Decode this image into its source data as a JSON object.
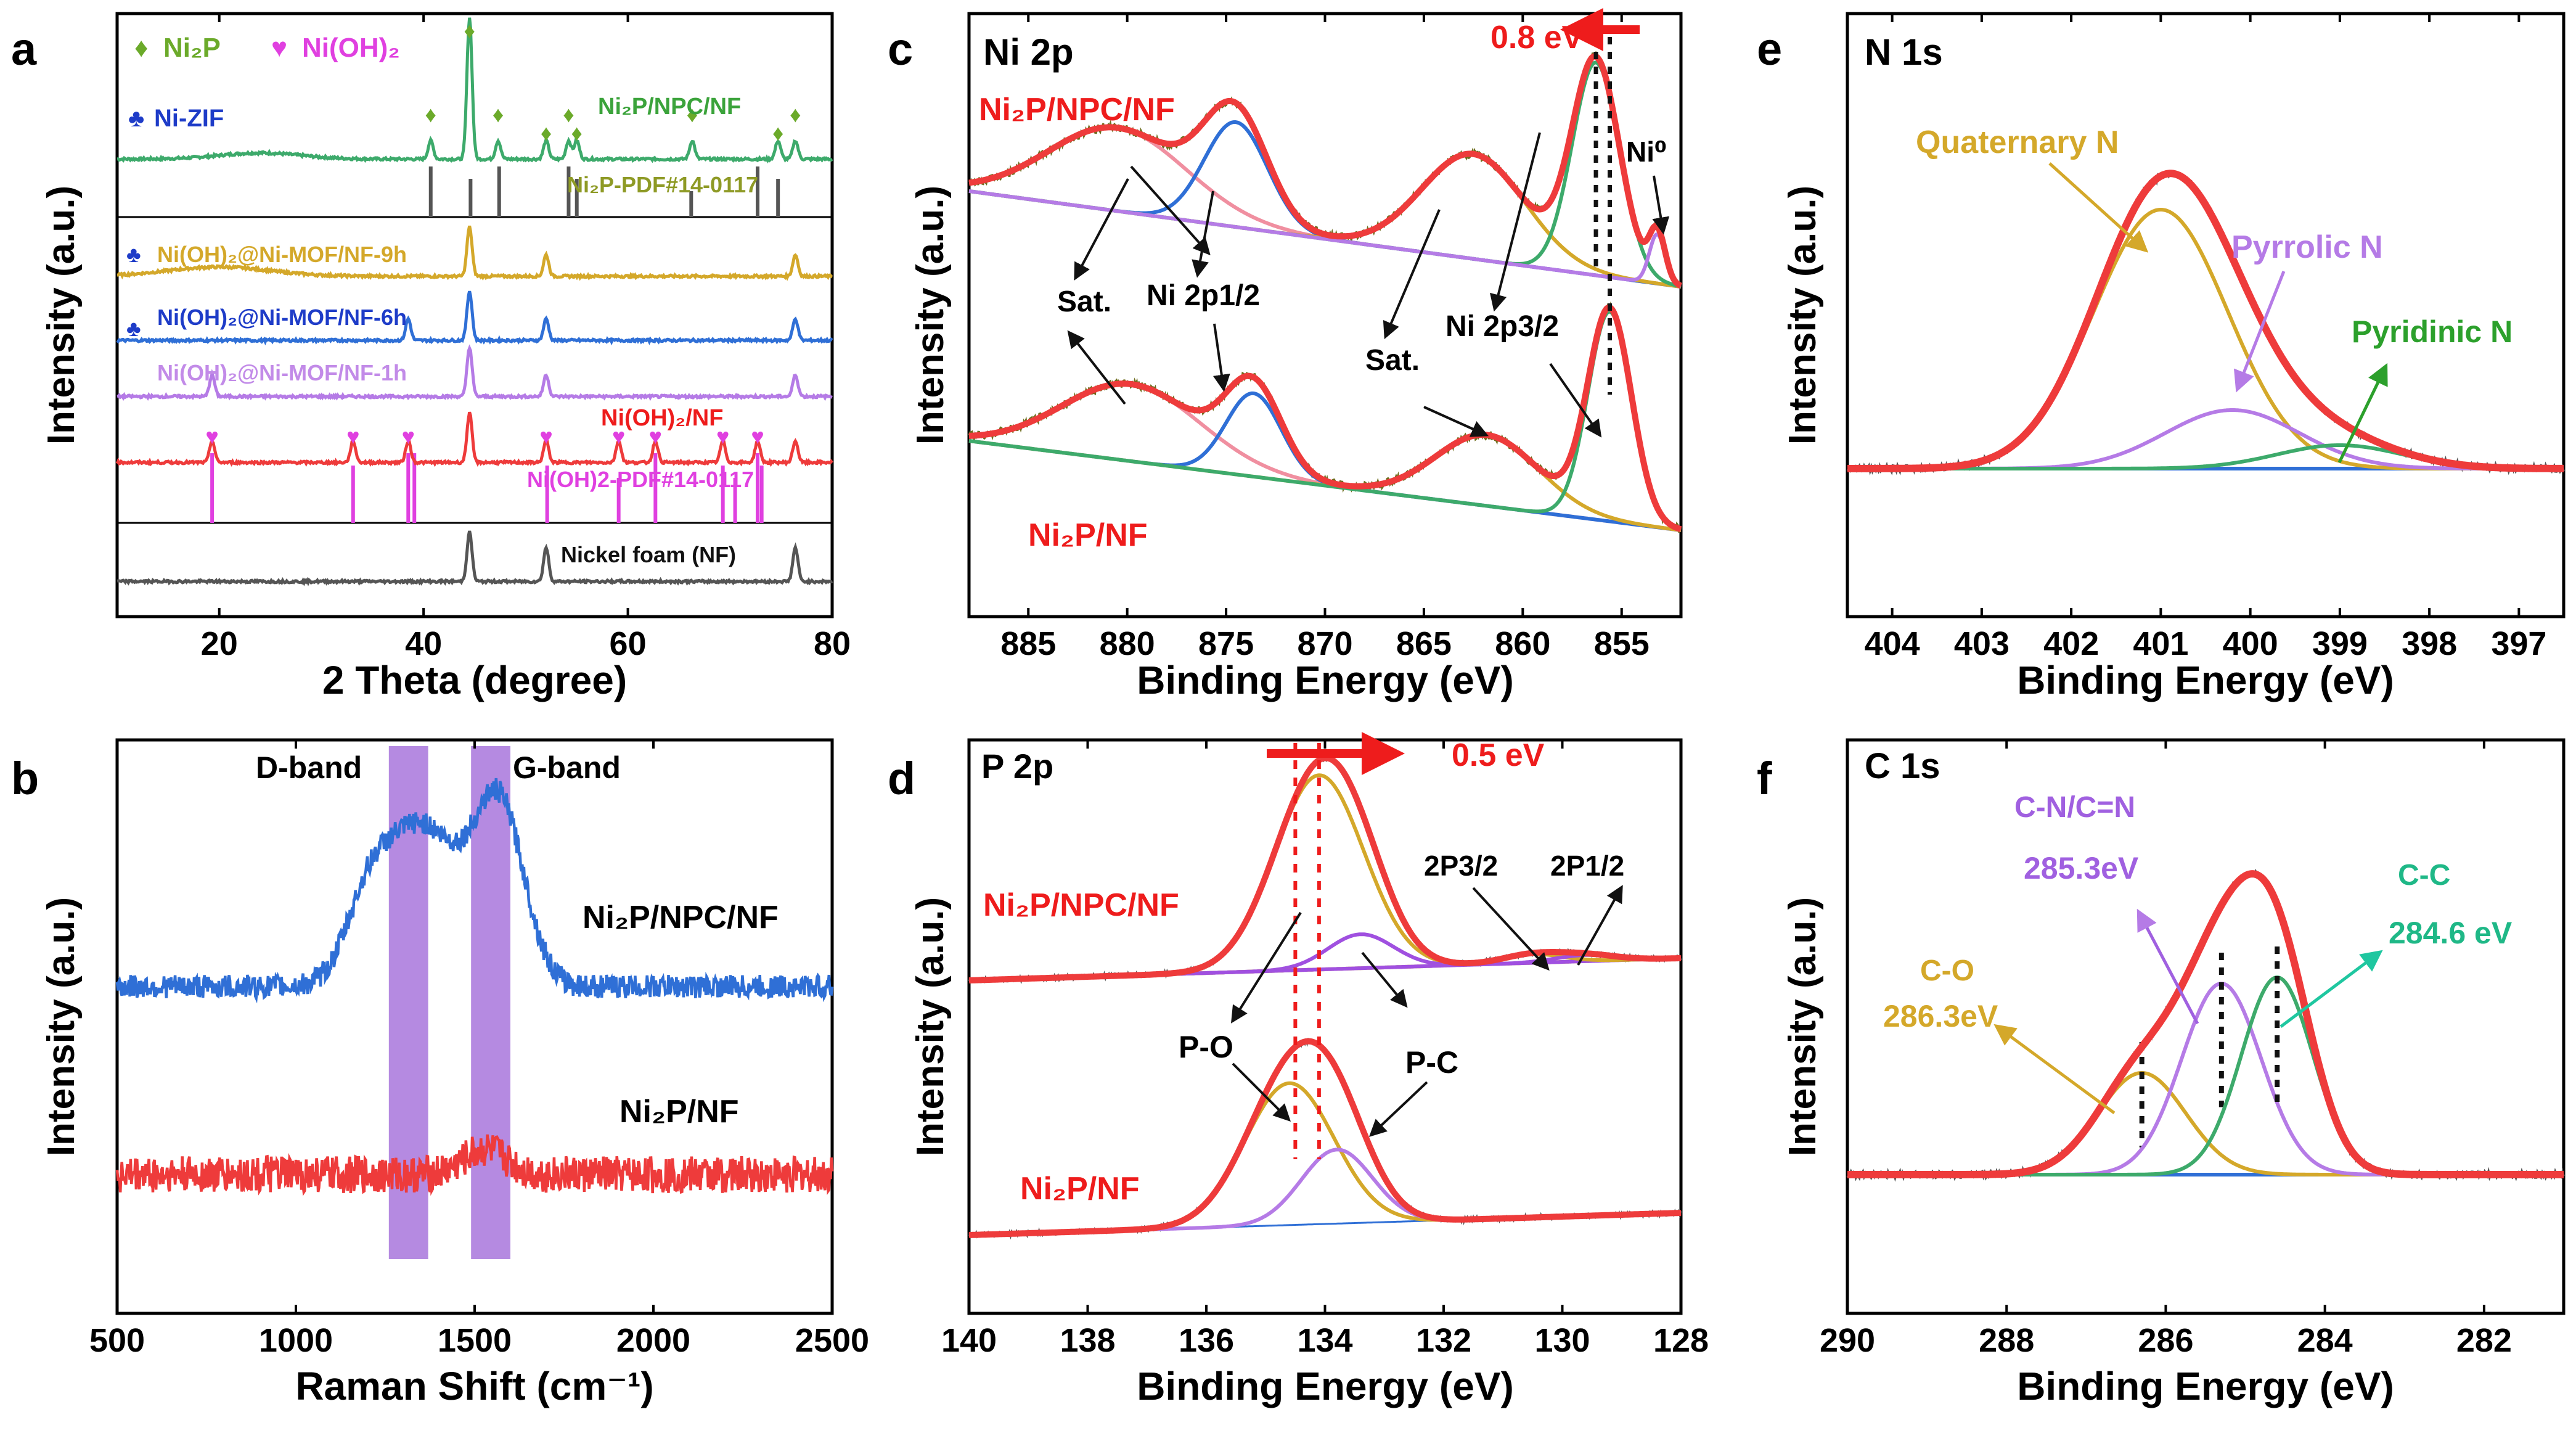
{
  "colors": {
    "red": "#EE3B3B",
    "blue": "#2F6FD6",
    "gold": "#D4A82A",
    "green": "#3DAA6B",
    "purple": "#B57BE6",
    "pink": "#F08FA0",
    "olive": "#8A8A2A",
    "gray": "#555555",
    "magenta": "#E040E0",
    "darkgreen": "#3BA33B",
    "band": "#9E6BD6"
  },
  "chart_data": [
    {
      "id": "a",
      "type": "line",
      "panel_label": "a",
      "xlabel": "2 Theta (degree)",
      "ylabel": "Intensity (a.u.)",
      "xlim": [
        10,
        80
      ],
      "xticks": [
        "20",
        "40",
        "60",
        "80"
      ],
      "legend": [
        {
          "symbol": "♦",
          "name": "Ni₂P",
          "color": "#6BAA2A"
        },
        {
          "symbol": "♥",
          "name": "Ni(OH)₂",
          "color": "#E040E0"
        },
        {
          "symbol": "♣",
          "name": "Ni-ZIF",
          "color": "#1E3CC8"
        }
      ],
      "series": [
        {
          "name": "Ni₂P/NPC/NF",
          "color": "#3DAA6B",
          "peaks": [
            40.7,
            44.5,
            47.3,
            52.0,
            54.2,
            55.0,
            66.3,
            74.7,
            76.4
          ]
        },
        {
          "name": "Ni(OH)₂@Ni-MOF/NF-9h",
          "color": "#D4A82A",
          "peaks": [
            44.5,
            52.0,
            76.4
          ]
        },
        {
          "name": "Ni(OH)₂@Ni-MOF/NF-6h",
          "color": "#2F6FD6",
          "peaks": [
            38.5,
            44.5,
            52.0,
            76.4
          ]
        },
        {
          "name": "Ni(OH)₂@Ni-MOF/NF-1h",
          "color": "#B57BE6",
          "peaks": [
            19.3,
            44.5,
            52.0,
            76.4
          ]
        },
        {
          "name": "Ni(OH)₂/NF",
          "color": "#EE3B3B",
          "peaks": [
            19.3,
            33.1,
            38.5,
            44.5,
            52.0,
            59.1,
            62.7,
            69.3,
            72.7,
            76.4
          ]
        },
        {
          "name": "Nickel foam (NF)",
          "color": "#555555",
          "peaks": [
            44.5,
            52.0,
            76.4
          ]
        }
      ],
      "references": [
        {
          "name": "Ni₂P-PDF#14-0117",
          "color": "#555555",
          "lines": [
            40.7,
            44.6,
            47.4,
            54.2,
            55.0,
            66.2,
            72.7,
            74.7
          ]
        },
        {
          "name": "Ni(OH)2-PDF#14-0117",
          "color": "#E040E0",
          "lines": [
            19.3,
            33.1,
            38.5,
            39.1,
            52.1,
            59.1,
            62.7,
            69.3,
            70.5,
            72.7,
            73.1
          ]
        }
      ]
    },
    {
      "id": "b",
      "type": "line",
      "panel_label": "b",
      "xlabel": "Raman Shift (cm⁻¹)",
      "ylabel": "Intensity (a.u.)",
      "xlim": [
        500,
        2500
      ],
      "xticks": [
        "500",
        "1000",
        "1500",
        "2000",
        "2500"
      ],
      "bands": [
        {
          "name": "D-band",
          "range": [
            1260,
            1370
          ]
        },
        {
          "name": "G-band",
          "range": [
            1490,
            1600
          ]
        }
      ],
      "series": [
        {
          "name": "Ni₂P/NPC/NF",
          "color": "#2F6FD6",
          "peaks": [
            {
              "x": 1350,
              "h": 1.0
            },
            {
              "x": 1580,
              "h": 1.0
            }
          ]
        },
        {
          "name": "Ni₂P/NF",
          "color": "#EE3B3B",
          "peaks": [
            {
              "x": 1530,
              "h": 0.3
            }
          ]
        }
      ]
    },
    {
      "id": "c",
      "type": "line",
      "panel_label": "c",
      "title": "Ni 2p",
      "xlabel": "Binding Energy (eV)",
      "ylabel": "Intensity (a.u.)",
      "xlim": [
        888,
        852
      ],
      "xticks": [
        "885",
        "880",
        "875",
        "870",
        "865",
        "860",
        "855"
      ],
      "shift_label": "0.8 eV",
      "series": [
        {
          "name": "Ni₂P/NPC/NF",
          "peaks": [
            {
              "x": 880.5,
              "label": "Sat.",
              "color": "#F08FA0"
            },
            {
              "x": 874.5,
              "label": "Ni 2p1/2",
              "color": "#2F6FD6"
            },
            {
              "x": 862.5,
              "label": "Sat.",
              "color": "#D4A82A"
            },
            {
              "x": 856.3,
              "label": "Ni 2p3/2",
              "color": "#3DAA6B"
            },
            {
              "x": 853.2,
              "label": "Ni⁰",
              "color": "#B57BE6"
            }
          ]
        },
        {
          "name": "Ni₂P/NF",
          "peaks": [
            {
              "x": 879.8,
              "label": "Sat.",
              "color": "#F08FA0"
            },
            {
              "x": 873.6,
              "label": "Ni 2p1/2",
              "color": "#2F6FD6"
            },
            {
              "x": 861.8,
              "label": "Sat.",
              "color": "#D4A82A"
            },
            {
              "x": 855.6,
              "label": "Ni 2p3/2",
              "color": "#3DAA6B"
            }
          ]
        }
      ],
      "annotations": [
        "Sat.",
        "Ni 2p1/2",
        "Sat.",
        "Ni 2p3/2",
        "Ni⁰"
      ]
    },
    {
      "id": "d",
      "type": "line",
      "panel_label": "d",
      "title": "P 2p",
      "xlabel": "Binding Energy (eV)",
      "ylabel": "Intensity (a.u.)",
      "xlim": [
        140,
        128
      ],
      "xticks": [
        "140",
        "138",
        "136",
        "134",
        "132",
        "130",
        "128"
      ],
      "shift_label": "0.5 eV",
      "series": [
        {
          "name": "Ni₂P/NPC/NF",
          "peaks": [
            {
              "x": 134.1,
              "label": "P-O"
            },
            {
              "x": 133.4,
              "label": "P-C"
            },
            {
              "x": 130.5,
              "label": "2P3/2"
            },
            {
              "x": 129.6,
              "label": "2P1/2"
            }
          ]
        },
        {
          "name": "Ni₂P/NF",
          "peaks": [
            {
              "x": 134.6,
              "label": "P-O"
            },
            {
              "x": 133.8,
              "label": "P-C"
            }
          ]
        }
      ],
      "annotations": [
        "P-O",
        "P-C",
        "2P3/2",
        "2P1/2"
      ]
    },
    {
      "id": "e",
      "type": "line",
      "panel_label": "e",
      "title": "N 1s",
      "xlabel": "Binding Energy (eV)",
      "ylabel": "Intensity (a.u.)",
      "xlim": [
        404.5,
        396.5
      ],
      "xticks": [
        "404",
        "403",
        "402",
        "401",
        "400",
        "399",
        "398",
        "397"
      ],
      "components": [
        {
          "name": "Quaternary N",
          "x": 401.0,
          "color": "#D4A82A"
        },
        {
          "name": "Pyrrolic N",
          "x": 400.2,
          "color": "#B57BE6"
        },
        {
          "name": "Pyridinic N",
          "x": 399.0,
          "color": "#3DAA6B"
        }
      ]
    },
    {
      "id": "f",
      "type": "line",
      "panel_label": "f",
      "title": "C 1s",
      "xlabel": "Binding Energy (eV)",
      "ylabel": "Intensity (a.u.)",
      "xlim": [
        290,
        281
      ],
      "xticks": [
        "290",
        "288",
        "286",
        "284",
        "282"
      ],
      "components": [
        {
          "name": "C-O",
          "value": "286.3eV",
          "x": 286.3,
          "color": "#D4A82A"
        },
        {
          "name": "C-N/C=N",
          "value": "285.3eV",
          "x": 285.3,
          "color": "#B57BE6"
        },
        {
          "name": "C-C",
          "value": "284.6 eV",
          "x": 284.6,
          "color": "#3DAA6B"
        }
      ]
    }
  ]
}
